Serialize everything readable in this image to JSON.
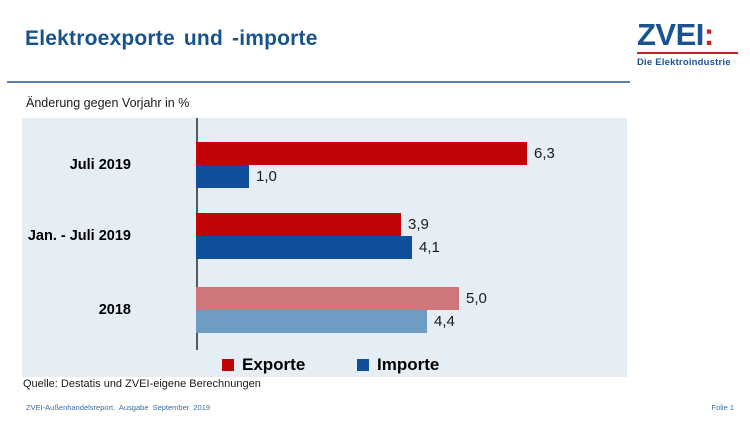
{
  "header": {
    "title": "Elektroexporte und -importe",
    "logo": {
      "brand": "ZVEI",
      "colon": ":",
      "tagline": "Die Elektroindustrie"
    }
  },
  "chart_data": {
    "type": "bar",
    "orientation": "horizontal",
    "title": "Elektroexporte und -importe",
    "subtitle": "Änderung gegen Vorjahr in %",
    "categories": [
      "Juli 2019",
      "Jan. - Juli 2019",
      "2018"
    ],
    "series": [
      {
        "name": "Exporte",
        "values": [
          6.3,
          3.9,
          5.0
        ],
        "labels": [
          "6,3",
          "3,9",
          "5,0"
        ],
        "color": "#c00408",
        "muted_color": "#cd767c"
      },
      {
        "name": "Importe",
        "values": [
          1.0,
          4.1,
          4.4
        ],
        "labels": [
          "1,0",
          "4,1",
          "4,4"
        ],
        "color": "#0e509b",
        "muted_color": "#6f9cc4"
      }
    ],
    "muted_categories": [
      "2018"
    ],
    "xlim": [
      0,
      8.2
    ],
    "grid": false,
    "legend_position": "bottom-inside"
  },
  "colors": {
    "exporte": "#c00408",
    "importe": "#0e509b",
    "exporte_muted": "#cd767c",
    "importe_muted": "#6f9cc4",
    "accent_blue": "#17538f",
    "logo_blue": "#1b5291",
    "logo_red": "#cc2027",
    "chart_bg": "#e6eef5"
  },
  "legend": [
    {
      "label": "Exporte",
      "swatch": "exporte"
    },
    {
      "label": "Importe",
      "swatch": "importe"
    }
  ],
  "footer": {
    "source": "Quelle: Destatis und ZVEI-eigene Berechnungen",
    "left": "ZVEI-Außenhandelsreport.  Ausgabe September 2019",
    "right": "Folie 1"
  }
}
